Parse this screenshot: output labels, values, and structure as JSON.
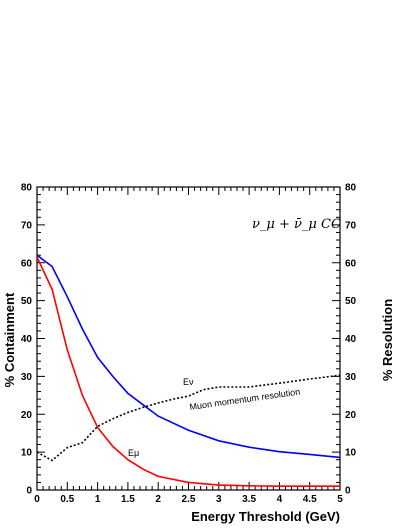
{
  "chart_data": {
    "type": "line",
    "title": "",
    "xlabel": "Energy Threshold (GeV)",
    "ylabel": "% Containment",
    "y2label": "% Resolution",
    "xlim": [
      0,
      5
    ],
    "ylim": [
      0,
      80
    ],
    "x_ticks": [
      0,
      0.5,
      1,
      1.5,
      2,
      2.5,
      3,
      3.5,
      4,
      4.5,
      5
    ],
    "x_tick_labels": [
      "0",
      "0.5",
      "1",
      "1.5",
      "2",
      "2.5",
      "3",
      "3.5",
      "4",
      "4.5",
      "5"
    ],
    "y_ticks": [
      0,
      10,
      20,
      30,
      40,
      50,
      60,
      70,
      80
    ],
    "y_tick_labels": [
      "0",
      "10",
      "20",
      "30",
      "40",
      "50",
      "60",
      "70",
      "80"
    ],
    "grid": false,
    "legend": "none",
    "annotation_main": "ν_μ + ν̄_μ  CC",
    "series": [
      {
        "name": "Eν",
        "color": "#0000ff",
        "style": "solid",
        "x": [
          0,
          0.25,
          0.5,
          0.75,
          1.0,
          1.25,
          1.5,
          1.75,
          2.0,
          2.5,
          3.0,
          3.5,
          4.0,
          4.5,
          5.0
        ],
        "y": [
          62,
          59,
          51,
          42.5,
          35,
          30,
          25.5,
          22.5,
          19.5,
          15.8,
          13.0,
          11.3,
          10.1,
          9.4,
          8.6
        ]
      },
      {
        "name": "Eμ",
        "color": "#ff0000",
        "style": "solid",
        "x": [
          0,
          0.25,
          0.5,
          0.75,
          1.0,
          1.25,
          1.5,
          1.75,
          2.0,
          2.5,
          3.0,
          3.5,
          4.0,
          4.5,
          5.0
        ],
        "y": [
          61.5,
          53,
          37,
          25,
          16.5,
          11.5,
          8.0,
          5.5,
          3.6,
          2.0,
          1.3,
          1.1,
          1.0,
          1.0,
          1.0
        ]
      },
      {
        "name": "Muon momentum resolution",
        "color": "#000000",
        "style": "dotted",
        "x": [
          0,
          0.25,
          0.5,
          0.75,
          1.0,
          1.25,
          1.5,
          1.75,
          2.0,
          2.25,
          2.5,
          2.75,
          3.0,
          3.5,
          4.0,
          4.5,
          5.0
        ],
        "y": [
          10,
          7.8,
          11.2,
          12.5,
          16.8,
          18.8,
          20.5,
          21.8,
          23.0,
          24.0,
          24.8,
          26.5,
          27.2,
          27.2,
          28.2,
          29.3,
          30.3
        ]
      }
    ]
  }
}
